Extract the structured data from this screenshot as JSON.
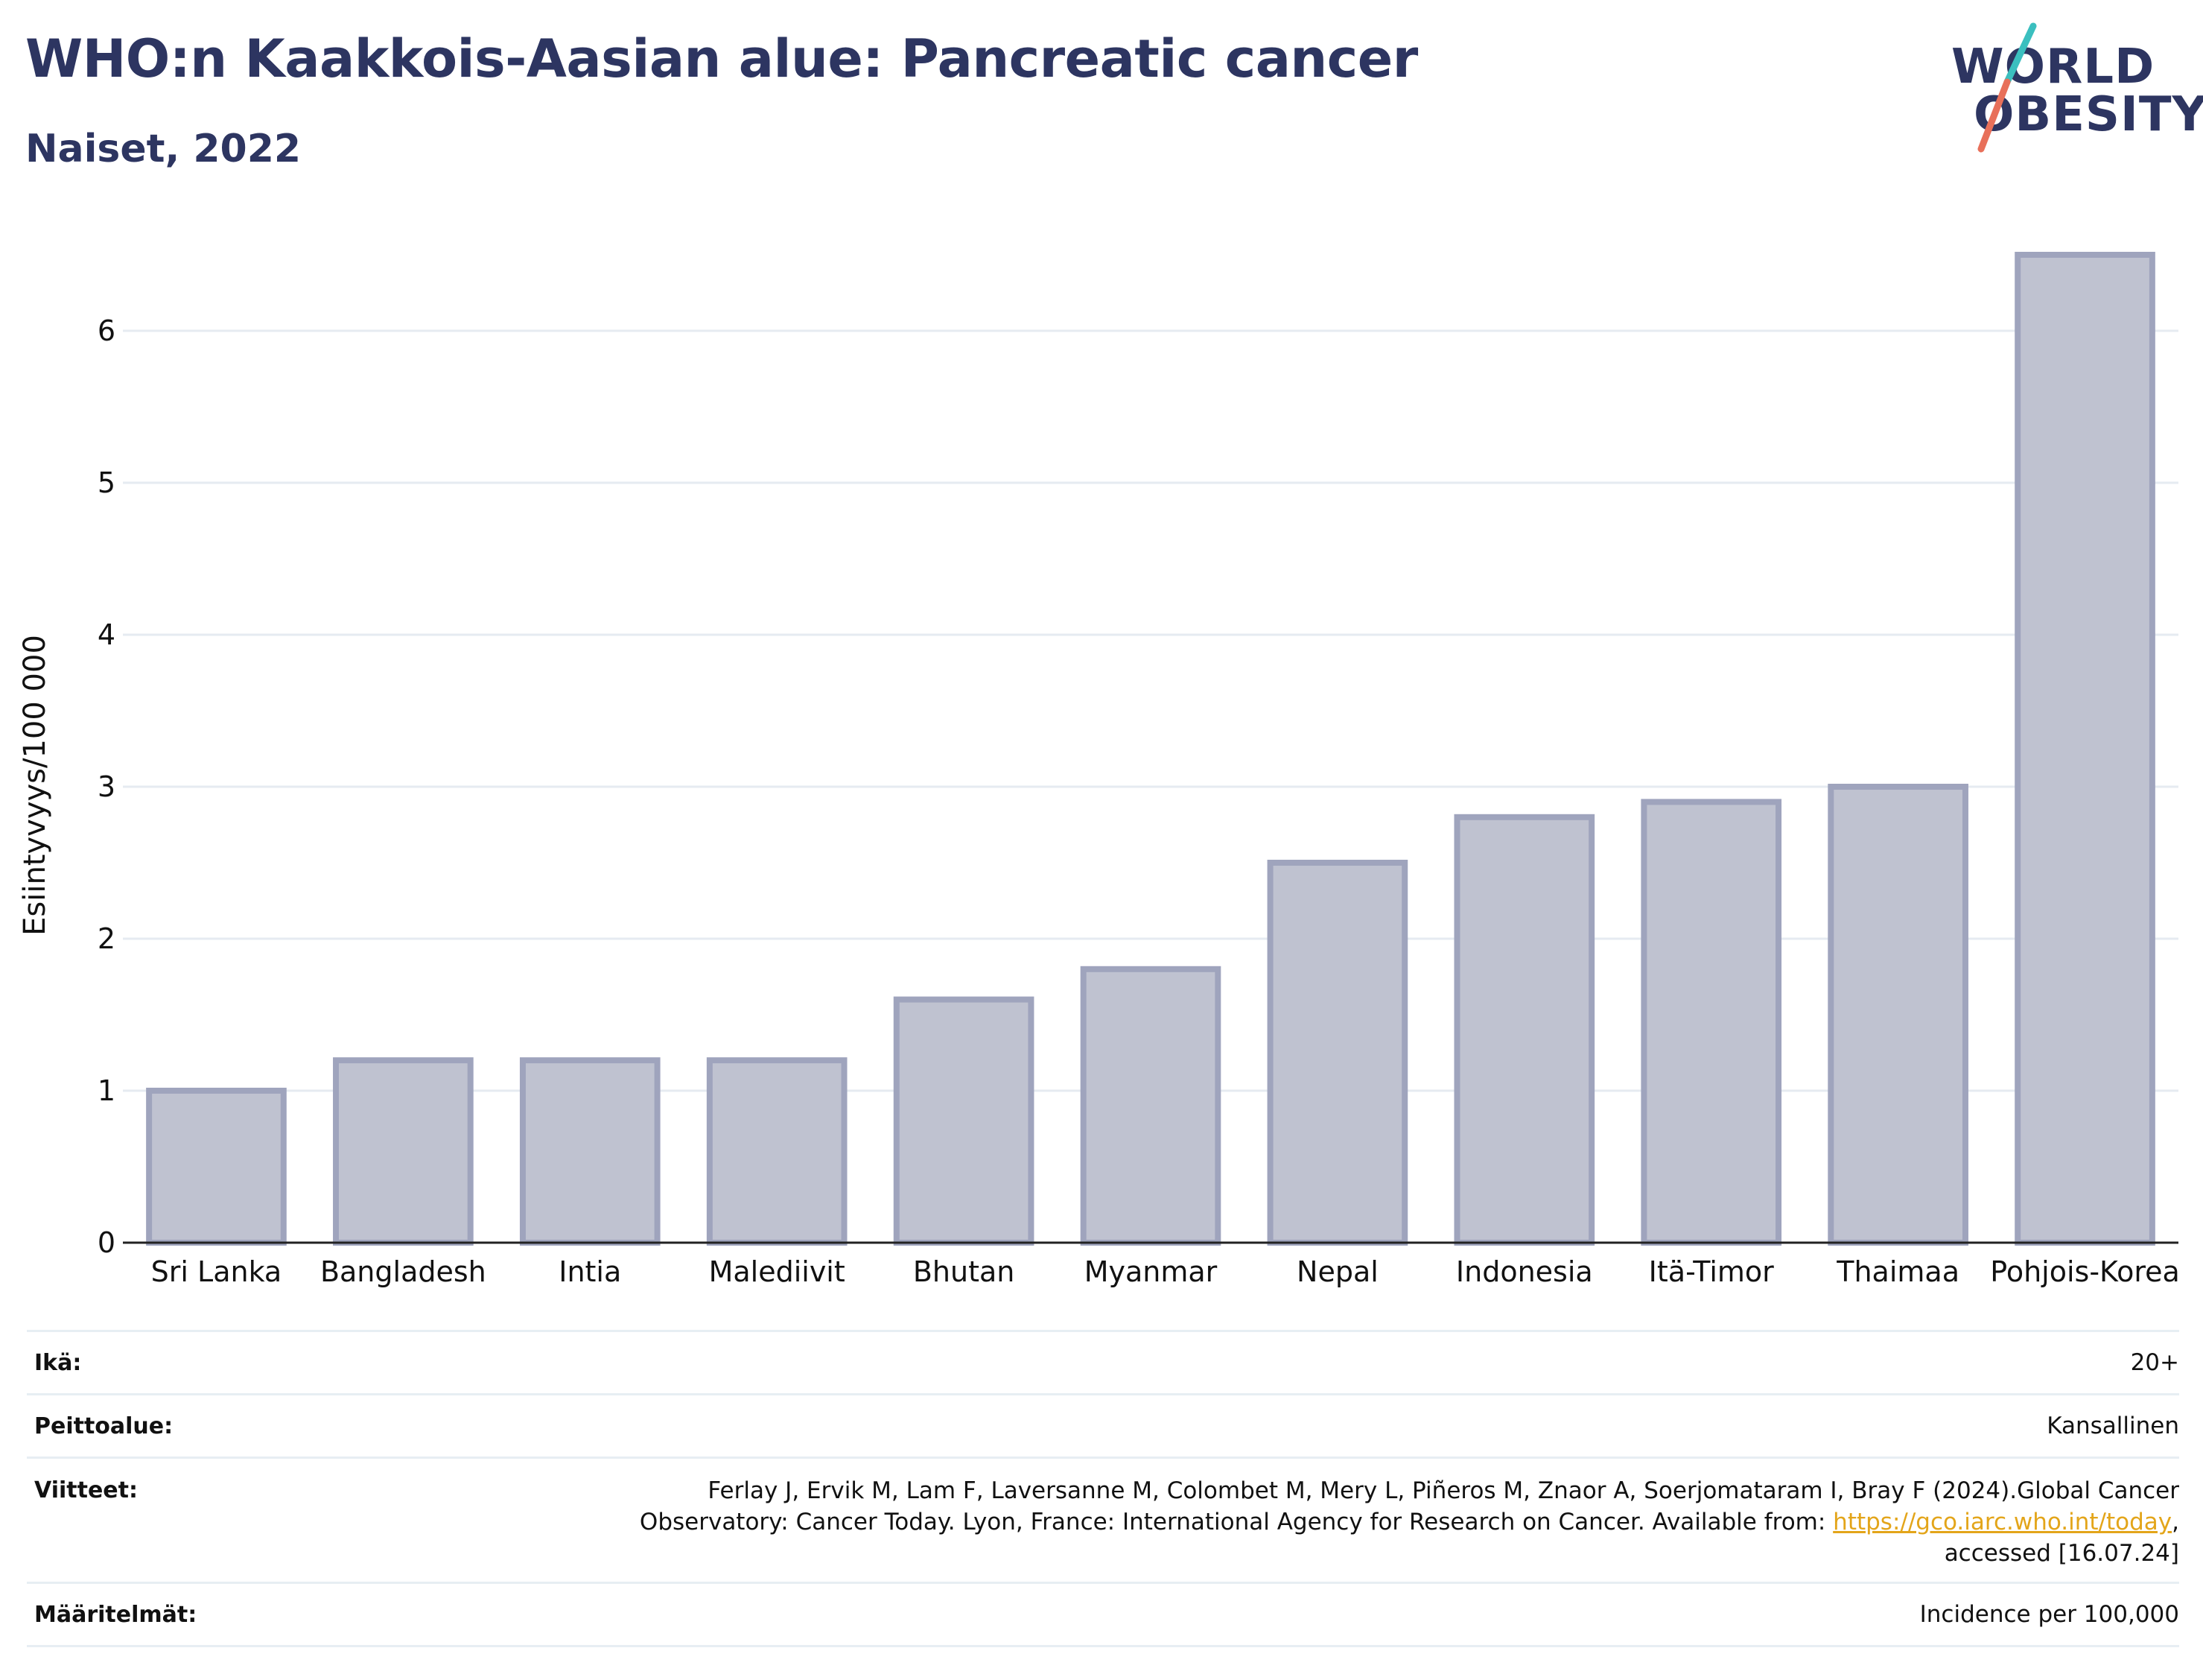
{
  "header": {
    "title": "WHO:n Kaakkois-Aasian alue: Pancreatic cancer",
    "subtitle": "Naiset, 2022"
  },
  "logo": {
    "line1": "WORLD",
    "line2": "OBESITY",
    "text_color": "#2d3561",
    "slash_colors": [
      "#3bbfbf",
      "#e8705a"
    ]
  },
  "chart_data": {
    "type": "bar",
    "categories": [
      "Sri Lanka",
      "Bangladesh",
      "Intia",
      "Malediivit",
      "Bhutan",
      "Myanmar",
      "Nepal",
      "Indonesia",
      "Itä-Timor",
      "Thaimaa",
      "Pohjois-Korea"
    ],
    "values": [
      1.0,
      1.2,
      1.2,
      1.2,
      1.6,
      1.8,
      2.5,
      2.8,
      2.9,
      3.0,
      6.5
    ],
    "title": "WHO:n Kaakkois-Aasian alue: Pancreatic cancer",
    "subtitle": "Naiset, 2022",
    "xlabel": "",
    "ylabel": "Esiintyvyys/100 000",
    "ylim": [
      0,
      7
    ],
    "yticks": [
      0,
      1,
      2,
      3,
      4,
      5,
      6
    ],
    "grid": true,
    "legend": "none",
    "bar_fill": "#bfc2d0",
    "bar_stroke": "#9fa4bd"
  },
  "meta": {
    "age_label": "Ikä:",
    "age_value": "20+",
    "coverage_label": "Peittoalue:",
    "coverage_value": "Kansallinen",
    "refs_label": "Viitteet:",
    "refs_line1": "Ferlay J, Ervik M, Lam F, Laversanne M, Colombet M, Mery L, Piñeros M, Znaor A, Soerjomataram I, Bray F (2024).Global Cancer",
    "refs_line2_pre": "Observatory: Cancer Today. Lyon, France: International Agency for Research on Cancer. Available from: ",
    "refs_link": "https://gco.iarc.who.int/today",
    "refs_line2_post": ",",
    "refs_line3": "accessed [16.07.24]",
    "defs_label": "Määritelmät:",
    "defs_value": "Incidence per 100,000"
  }
}
